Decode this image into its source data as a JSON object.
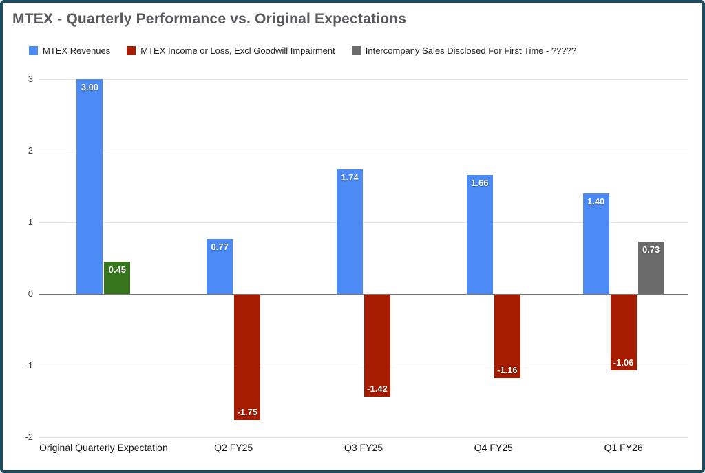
{
  "legend": [
    {
      "label": "MTEX Revenues",
      "color": "#4c8bf5"
    },
    {
      "label": "MTEX Income or Loss, Excl Goodwill Impairment",
      "color": "#a61c00"
    },
    {
      "label": "Intercompany Sales Disclosed For First Time - ?????",
      "color": "#6b6b6b"
    }
  ],
  "chart_data": {
    "type": "bar",
    "title": "MTEX - Quarterly Performance vs. Original Expectations",
    "categories": [
      "Original Quarterly Expectation",
      "Q2 FY25",
      "Q3 FY25",
      "Q4 FY25",
      "Q1 FY26"
    ],
    "series": [
      {
        "name": "MTEX Revenues",
        "color": "#4c8bf5",
        "values": [
          3.0,
          0.77,
          1.74,
          1.66,
          1.4
        ],
        "labels": [
          "3.00",
          "0.77",
          "1.74",
          "1.66",
          "1.40"
        ]
      },
      {
        "name": "MTEX Income or Loss, Excl Goodwill Impairment",
        "color": "#a61c00",
        "bar_colors": [
          "#38761d",
          null,
          null,
          null,
          null
        ],
        "values": [
          0.45,
          -1.75,
          -1.42,
          -1.16,
          -1.06
        ],
        "labels": [
          "0.45",
          "-1.75",
          "-1.42",
          "-1.16",
          "-1.06"
        ]
      },
      {
        "name": "Intercompany Sales Disclosed For First Time - ?????",
        "color": "#6b6b6b",
        "values": [
          null,
          null,
          null,
          null,
          0.73
        ],
        "labels": [
          null,
          null,
          null,
          null,
          "0.73"
        ]
      }
    ],
    "ylim": [
      -2,
      3
    ],
    "yticks": [
      3,
      2,
      1,
      0,
      -1,
      -2
    ],
    "grid": true,
    "legend_position": "top"
  }
}
